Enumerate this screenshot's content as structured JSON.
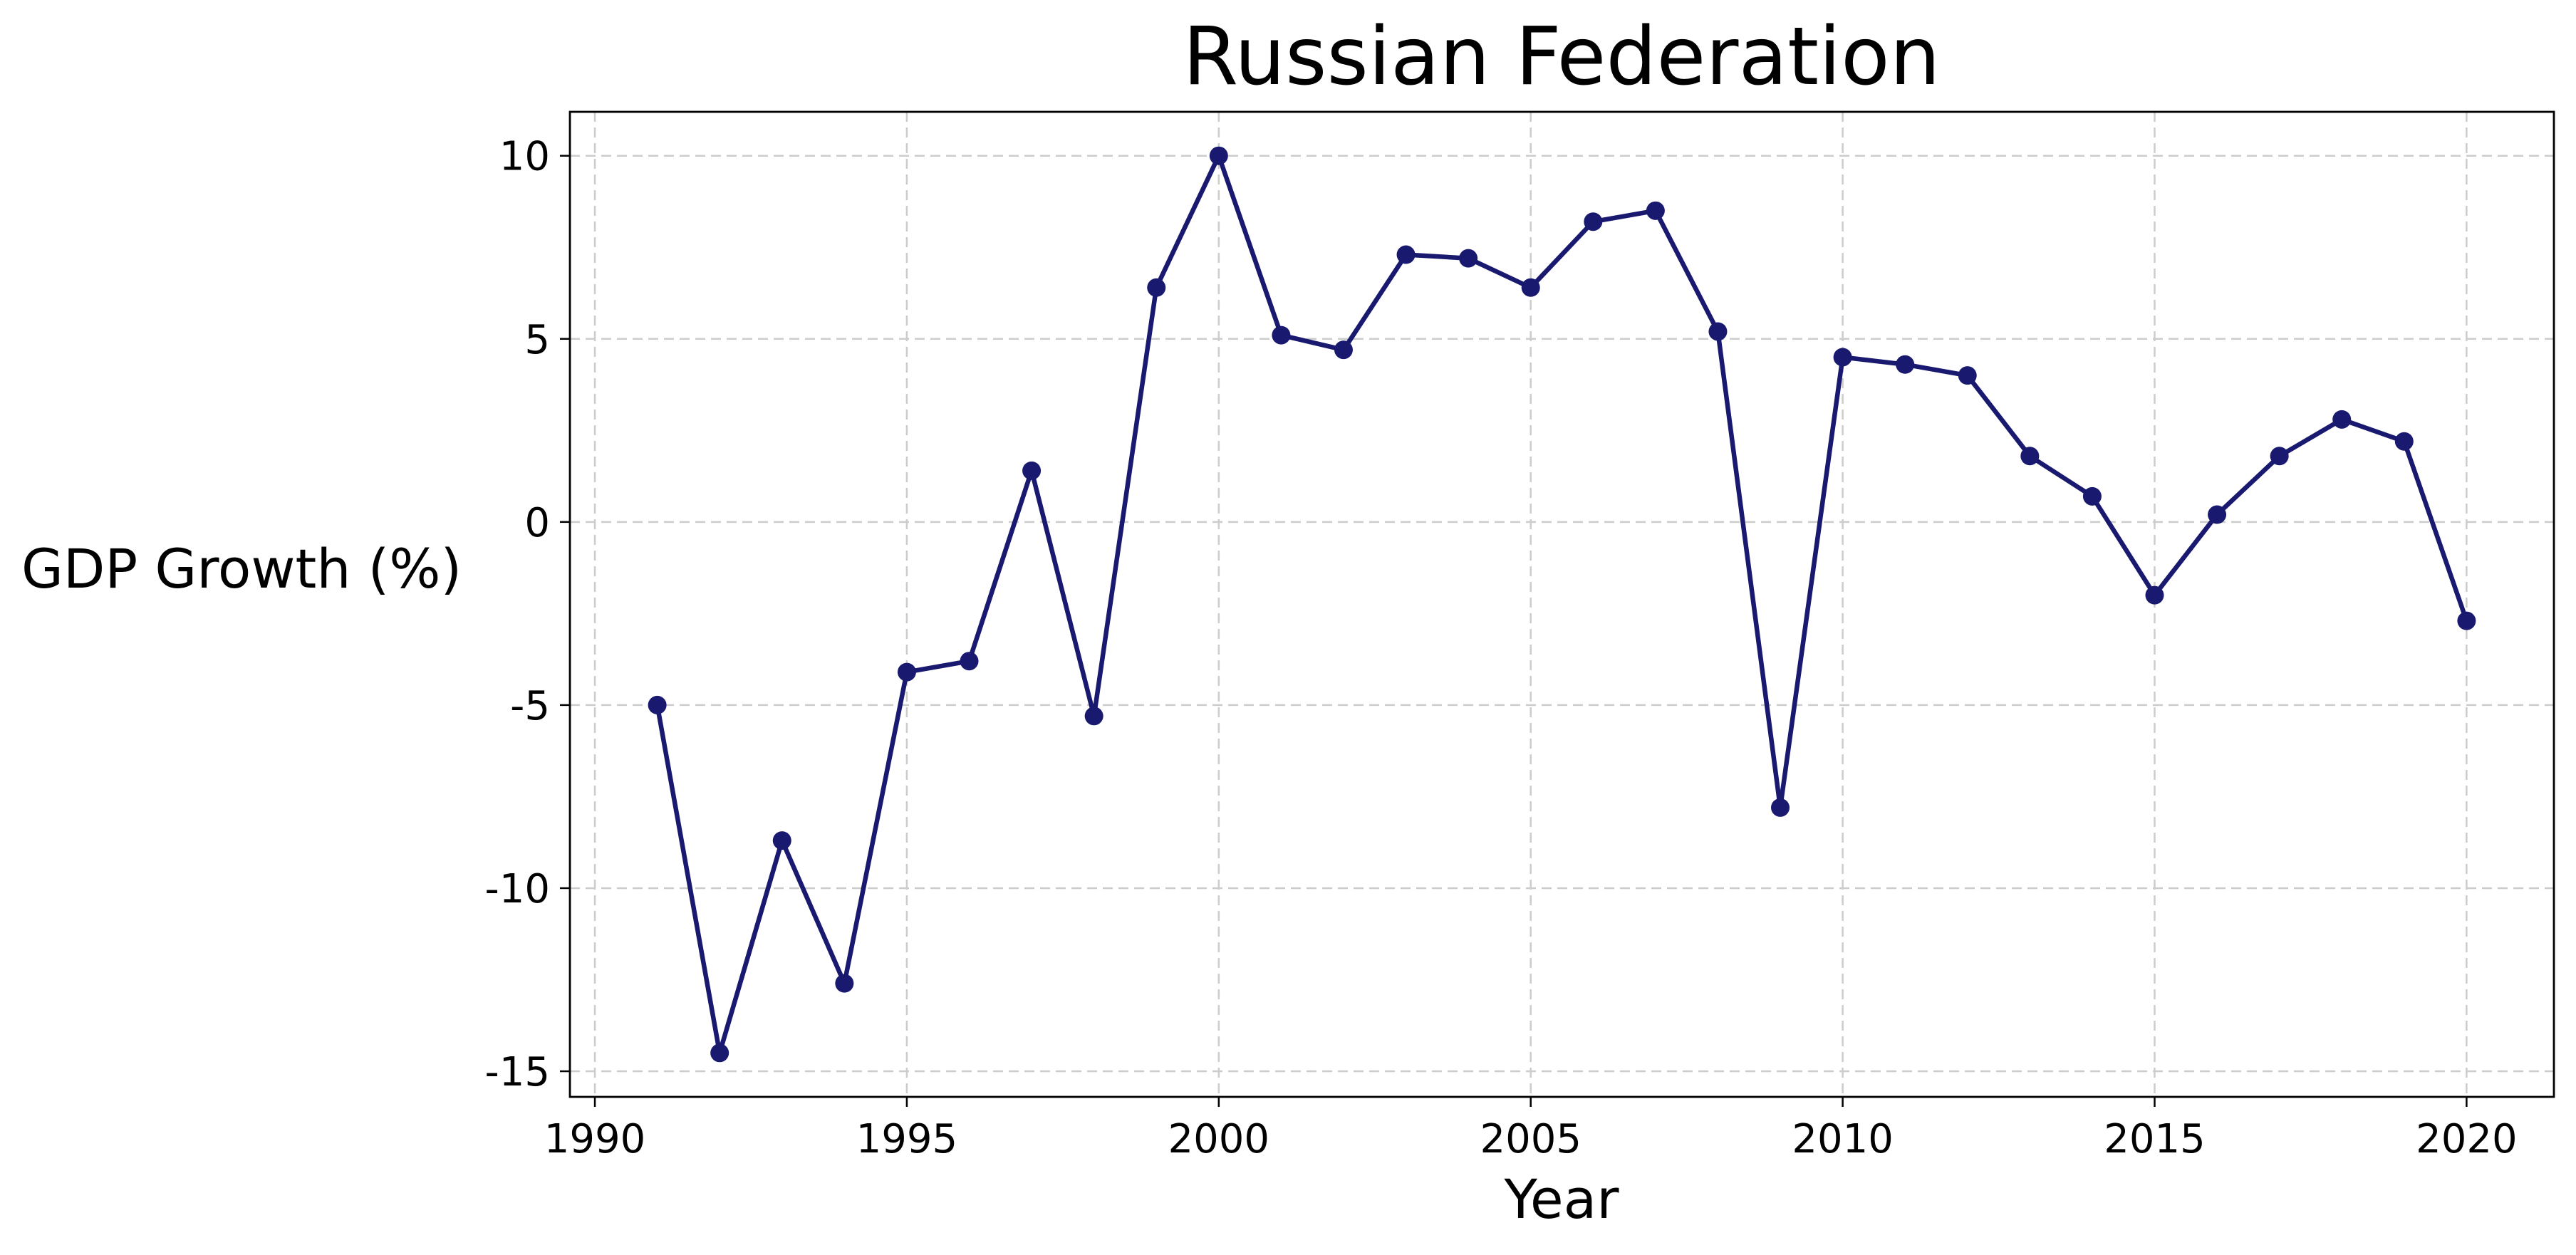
{
  "chart_data": {
    "type": "line",
    "title": "Russian Federation",
    "xlabel": "Year",
    "ylabel": "GDP Growth (%)",
    "xlim": [
      1989.6,
      2021.4
    ],
    "ylim": [
      -15.7,
      11.2
    ],
    "xticks": [
      1990,
      1995,
      2000,
      2005,
      2010,
      2015,
      2020
    ],
    "yticks": [
      -15,
      -10,
      -5,
      0,
      5,
      10
    ],
    "grid": true,
    "marker": "circle",
    "line_color": "#191970",
    "x": [
      1991,
      1992,
      1993,
      1994,
      1995,
      1996,
      1997,
      1998,
      1999,
      2000,
      2001,
      2002,
      2003,
      2004,
      2005,
      2006,
      2007,
      2008,
      2009,
      2010,
      2011,
      2012,
      2013,
      2014,
      2015,
      2016,
      2017,
      2018,
      2019,
      2020
    ],
    "series": [
      {
        "values": [
          -5.0,
          -14.5,
          -8.7,
          -12.6,
          -4.1,
          -3.8,
          1.4,
          -5.3,
          6.4,
          10.0,
          5.1,
          4.7,
          7.3,
          7.2,
          6.4,
          8.2,
          8.5,
          5.2,
          -7.8,
          4.5,
          4.3,
          4.0,
          1.8,
          0.7,
          -2.0,
          0.2,
          1.8,
          2.8,
          2.2,
          -2.7
        ]
      }
    ]
  }
}
